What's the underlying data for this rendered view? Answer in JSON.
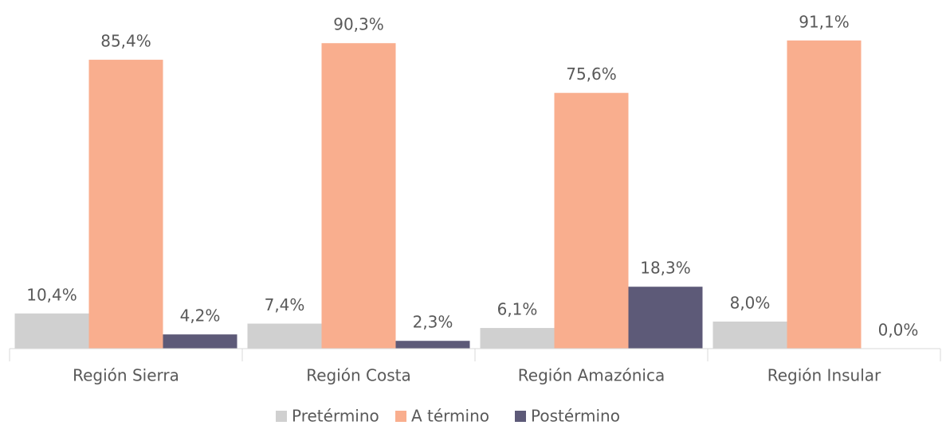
{
  "chart_data": {
    "type": "bar",
    "categories": [
      "Región Sierra",
      "Región Costa",
      "Región Amazónica",
      "Región Insular"
    ],
    "series": [
      {
        "name": "Pretérmino",
        "color": "#d0d0d0",
        "values": [
          10.4,
          7.4,
          6.1,
          8.0
        ],
        "value_labels": [
          "10,4%",
          "7,4%",
          "6,1%",
          "8,0%"
        ]
      },
      {
        "name": "A término",
        "color": "#f9ae8e",
        "values": [
          85.4,
          90.3,
          75.6,
          91.1
        ],
        "value_labels": [
          "85,4%",
          "90,3%",
          "75,6%",
          "91,1%"
        ]
      },
      {
        "name": "Postérmino",
        "color": "#5d5a78",
        "values": [
          4.2,
          2.3,
          18.3,
          0.0
        ],
        "value_labels": [
          "4,2%",
          "2,3%",
          "18,3%",
          "0,0%"
        ]
      }
    ],
    "legend": "bottom"
  }
}
